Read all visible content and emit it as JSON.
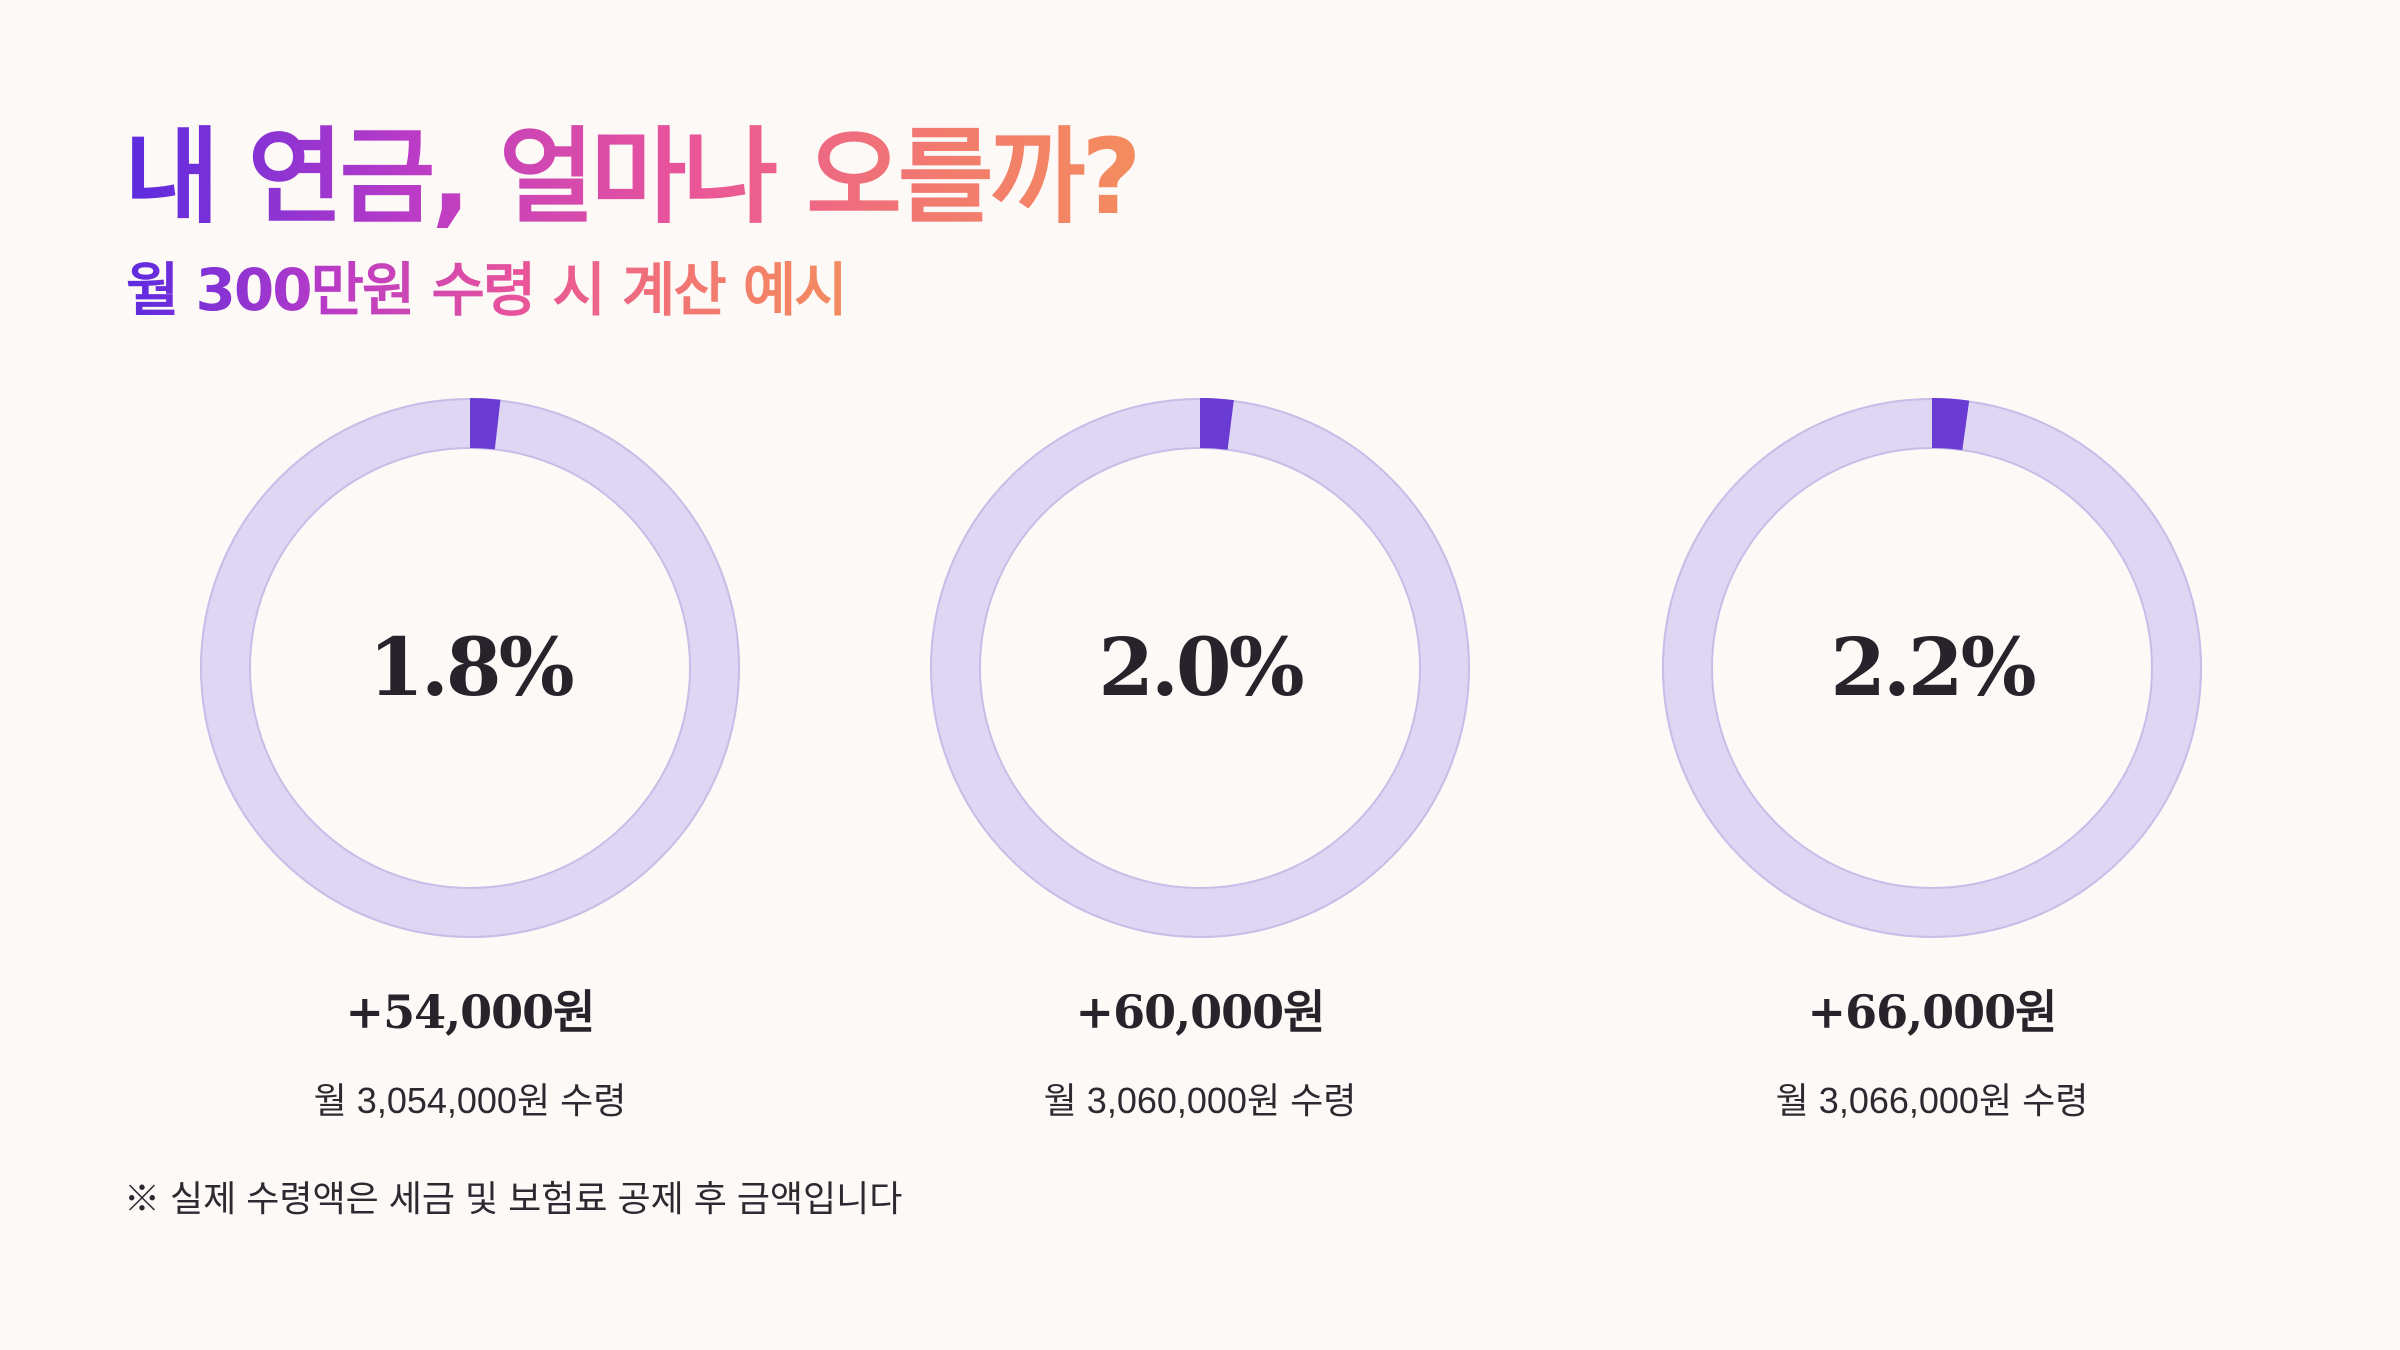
{
  "title": "내 연금, 얼마나 오를까?",
  "subtitle": "월 300만원 수령 시 계산 예시",
  "footnote": "※ 실제 수령액은 세금 및 보험료 공제 후 금액입니다",
  "colors": {
    "background": "#fdf9f7",
    "ring_track": "#dfd6f4",
    "ring_track_stroke": "#c7bde7",
    "ring_fill": "#6a3bd3",
    "text": "#26232a",
    "gradient_start": "#5b2be0",
    "gradient_end": "#f48c5e"
  },
  "chart_data": {
    "type": "donut",
    "items": [
      {
        "percent": 1.8,
        "percent_label": "1.8%",
        "increase_label": "+54,000원",
        "monthly_label": "월 3,054,000원 수령"
      },
      {
        "percent": 2.0,
        "percent_label": "2.0%",
        "increase_label": "+60,000원",
        "monthly_label": "월 3,060,000원 수령"
      },
      {
        "percent": 2.2,
        "percent_label": "2.2%",
        "increase_label": "+66,000원",
        "monthly_label": "월 3,066,000원 수령"
      }
    ]
  }
}
